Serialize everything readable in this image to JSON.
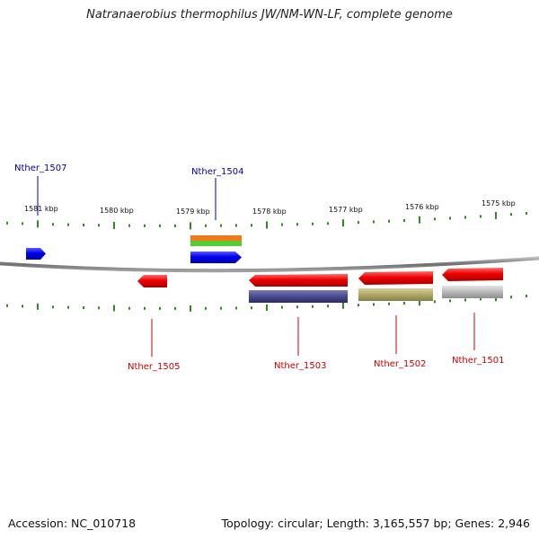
{
  "title": "Natranaerobius thermophilus JW/NM-WN-LF, complete genome",
  "footer": {
    "accession": "Accession: NC_010718",
    "summary": "Topology: circular; Length: 3,165,557 bp; Genes: 2,946"
  },
  "ticks": [
    "1581 kbp",
    "1580 kbp",
    "1579 kbp",
    "1578 kbp",
    "1577 kbp",
    "1576 kbp",
    "1575 kbp"
  ],
  "genes": [
    {
      "id": "Nther_1507",
      "label": "Nther_1507",
      "strand": "forward",
      "color": "#0000ee"
    },
    {
      "id": "Nther_1504",
      "label": "Nther_1504",
      "strand": "forward",
      "color": "#0000ee"
    },
    {
      "id": "Nther_1505",
      "label": "Nther_1505",
      "strand": "reverse",
      "color": "#ee0000"
    },
    {
      "id": "Nther_1503",
      "label": "Nther_1503",
      "strand": "reverse",
      "color": "#ee0000"
    },
    {
      "id": "Nther_1502",
      "label": "Nther_1502",
      "strand": "reverse",
      "color": "#ee0000"
    },
    {
      "id": "Nther_1501",
      "label": "Nther_1501",
      "strand": "reverse",
      "color": "#ee0000"
    }
  ],
  "colors": {
    "forward": "#0000ee",
    "reverse": "#ee0000",
    "backbone": "#777777",
    "tick": "#2e8b22",
    "cds_1503": "#4a4a8c",
    "cds_1502": "#b0a86a",
    "cds_1501": "#b8b8b8",
    "feature_orange": "#f07a1a",
    "feature_green": "#55cc33"
  }
}
